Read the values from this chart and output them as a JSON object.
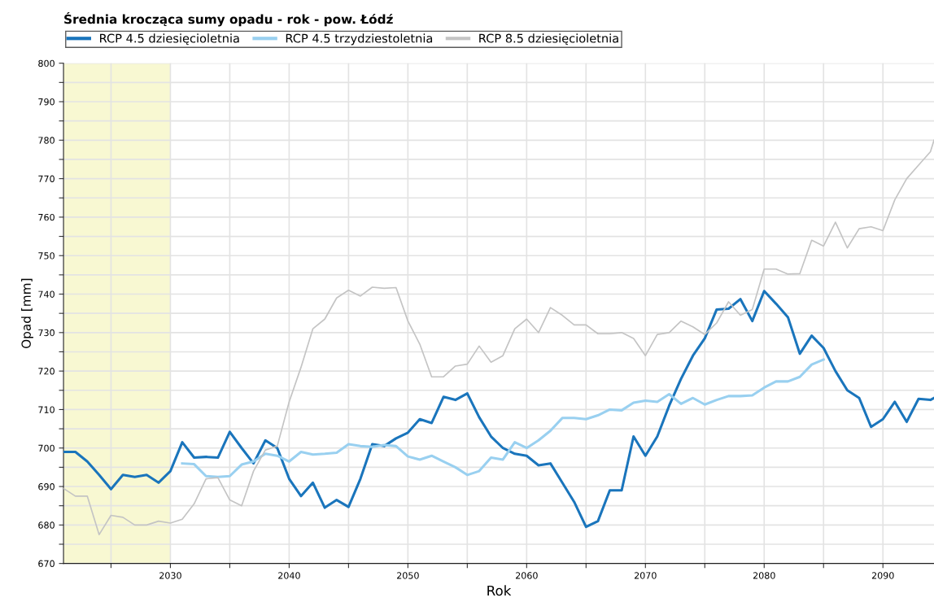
{
  "chart_data": {
    "type": "line",
    "title": "Średnia krocząca sumy opadu - rok - pow. Łódź",
    "xlabel": "Rok",
    "ylabel": "Opad [mm]",
    "xlim": [
      2021,
      2094.3
    ],
    "ylim": [
      670,
      800
    ],
    "xticks": [
      {
        "value": 2025,
        "label": null
      },
      2030,
      {
        "value": 2035,
        "label": null
      },
      2040,
      {
        "value": 2045,
        "label": null
      },
      2050,
      {
        "value": 2055,
        "label": null
      },
      2060,
      {
        "value": 2065,
        "label": null
      },
      2070,
      {
        "value": 2075,
        "label": null
      },
      2080,
      {
        "value": 2085,
        "label": null
      },
      2090
    ],
    "yticks": [
      670,
      {
        "value": 675,
        "label": null
      },
      680,
      {
        "value": 685,
        "label": null
      },
      690,
      {
        "value": 695,
        "label": null
      },
      700,
      {
        "value": 705,
        "label": null
      },
      710,
      {
        "value": 715,
        "label": null
      },
      720,
      {
        "value": 725,
        "label": null
      },
      730,
      {
        "value": 735,
        "label": null
      },
      740,
      {
        "value": 745,
        "label": null
      },
      750,
      {
        "value": 755,
        "label": null
      },
      760,
      {
        "value": 765,
        "label": null
      },
      770,
      {
        "value": 775,
        "label": null
      },
      780,
      {
        "value": 785,
        "label": null
      },
      790,
      {
        "value": 795,
        "label": null
      },
      800
    ],
    "grid": true,
    "legend": "top left",
    "marker": "none",
    "line_style": "solid",
    "bands": [
      {
        "axis": "x",
        "from": 2021,
        "to": 2030,
        "label": null,
        "color": "#f8f8d2"
      }
    ],
    "series": [
      {
        "name": "RCP 4.5 dziesięcioletnia",
        "color": "#1a75bc",
        "x": [
          2021,
          2022,
          2023,
          2024,
          2025,
          2026,
          2027,
          2028,
          2029,
          2030,
          2031,
          2032,
          2033,
          2034,
          2035,
          2036,
          2037,
          2038,
          2039,
          2040,
          2041,
          2042,
          2043,
          2044,
          2045,
          2046,
          2047,
          2048,
          2049,
          2050,
          2051,
          2052,
          2053,
          2054,
          2055,
          2056,
          2057,
          2058,
          2059,
          2060,
          2061,
          2062,
          2063,
          2064,
          2065,
          2066,
          2067,
          2068,
          2069,
          2070,
          2071,
          2072,
          2073,
          2074,
          2075,
          2076,
          2077,
          2078,
          2079,
          2080,
          2081,
          2082,
          2083,
          2084,
          2085,
          2086,
          2087,
          2088,
          2089,
          2090,
          2091,
          2092,
          2093,
          2094,
          2094.3
        ],
        "values": [
          699,
          699,
          696.5,
          693,
          689.3,
          693,
          692.5,
          693,
          691,
          694,
          701.5,
          697.5,
          697.7,
          697.5,
          704.2,
          700,
          696,
          702,
          700,
          692,
          687.5,
          691,
          684.5,
          686.5,
          684.7,
          692,
          701,
          700.5,
          702.5,
          704,
          707.5,
          706.5,
          713.3,
          712.5,
          714.2,
          708,
          703,
          700,
          698.5,
          698,
          695.5,
          696,
          691,
          686,
          679.5,
          681,
          689,
          689,
          703,
          698,
          703,
          711,
          718,
          724,
          728.5,
          736,
          736.2,
          738.7,
          733,
          740.8,
          737.5,
          734,
          724.5,
          729.2,
          726,
          720,
          715,
          713,
          705.5,
          707.5,
          712,
          706.8,
          712.8,
          712.5,
          713
        ]
      },
      {
        "name": "RCP 4.5 trzydziestoletnia",
        "color": "#99d0f0",
        "x": [
          2031,
          2032,
          2033,
          2034,
          2035,
          2036,
          2037,
          2038,
          2039,
          2040,
          2041,
          2042,
          2043,
          2044,
          2045,
          2046,
          2047,
          2048,
          2049,
          2050,
          2051,
          2052,
          2053,
          2054,
          2055,
          2056,
          2057,
          2058,
          2059,
          2060,
          2061,
          2062,
          2063,
          2064,
          2065,
          2066,
          2067,
          2068,
          2069,
          2070,
          2071,
          2072,
          2073,
          2074,
          2075,
          2076,
          2077,
          2078,
          2079,
          2080,
          2081,
          2082,
          2083,
          2084,
          2085
        ],
        "values": [
          696,
          695.8,
          692.7,
          692.5,
          692.7,
          695.7,
          696.5,
          698.5,
          698,
          696.5,
          699,
          698.3,
          698.5,
          698.8,
          701,
          700.5,
          700.3,
          700.8,
          700.5,
          697.8,
          697,
          698,
          696.5,
          695,
          693,
          694,
          697.5,
          697,
          701.5,
          700,
          702,
          704.5,
          707.8,
          707.8,
          707.5,
          708.5,
          710,
          709.8,
          711.8,
          712.3,
          712,
          714,
          711.5,
          713,
          711.3,
          712.5,
          713.5,
          713.5,
          713.7,
          715.7,
          717.3,
          717.3,
          718.5,
          721.7,
          723
        ]
      },
      {
        "name": "RCP 8.5 dziesięcioletnia",
        "color": "#c4c4c4",
        "x": [
          2021,
          2022,
          2023,
          2024,
          2025,
          2026,
          2027,
          2028,
          2029,
          2030,
          2031,
          2032,
          2033,
          2034,
          2035,
          2036,
          2037,
          2038,
          2039,
          2040,
          2041,
          2042,
          2043,
          2044,
          2045,
          2046,
          2047,
          2048,
          2049,
          2050,
          2051,
          2052,
          2053,
          2054,
          2055,
          2056,
          2057,
          2058,
          2059,
          2060,
          2061,
          2062,
          2063,
          2064,
          2065,
          2066,
          2067,
          2068,
          2069,
          2070,
          2071,
          2072,
          2073,
          2074,
          2075,
          2076,
          2077,
          2078,
          2079,
          2080,
          2081,
          2082,
          2083,
          2084,
          2085,
          2086,
          2087,
          2088,
          2089,
          2090,
          2091,
          2092,
          2093,
          2094,
          2094.3
        ],
        "values": [
          689.5,
          687.5,
          687.5,
          677.5,
          682.5,
          682,
          680,
          680,
          681,
          680.5,
          681.5,
          685.5,
          692,
          692.3,
          686.5,
          685,
          694,
          699.5,
          700.5,
          712,
          721,
          731,
          733.5,
          739,
          741,
          739.5,
          741.8,
          741.5,
          741.7,
          733,
          727,
          718.5,
          718.5,
          721.3,
          721.8,
          726.5,
          722.3,
          724,
          731,
          733.5,
          730,
          736.5,
          734.5,
          732,
          732,
          729.7,
          729.7,
          730,
          728.5,
          724,
          729.5,
          730,
          733,
          731.5,
          729.5,
          732.5,
          738,
          734.5,
          736,
          746.5,
          746.5,
          745.2,
          745.3,
          754,
          752.5,
          758.7,
          752,
          757,
          757.5,
          756.5,
          764.5,
          770,
          773.5,
          777,
          780
        ]
      }
    ]
  }
}
